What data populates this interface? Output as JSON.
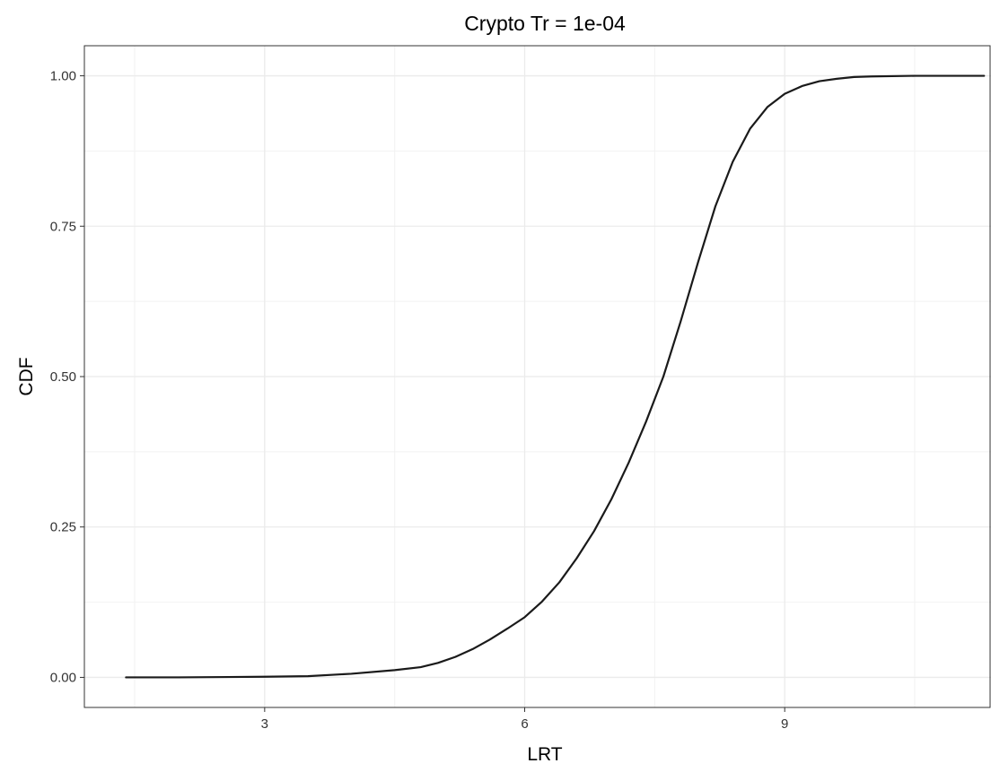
{
  "chart_data": {
    "type": "line",
    "title": "Crypto Tr = 1e-04",
    "xlabel": "LRT",
    "ylabel": "CDF",
    "xlim": [
      0.92,
      11.38
    ],
    "ylim": [
      -0.05,
      1.05
    ],
    "xticks": [
      3,
      6,
      9
    ],
    "xtick_labels": [
      "3",
      "6",
      "9"
    ],
    "yticks": [
      0,
      0.25,
      0.5,
      0.75,
      1
    ],
    "ytick_labels": [
      "0.00",
      "0.25",
      "0.50",
      "0.75",
      "1.00"
    ],
    "grid": true,
    "legend": "none",
    "series": [
      {
        "color": "#1a1a1a",
        "x": [
          1.4,
          2.0,
          3.0,
          3.5,
          4.0,
          4.5,
          4.8,
          5.0,
          5.2,
          5.4,
          5.6,
          5.8,
          6.0,
          6.2,
          6.4,
          6.6,
          6.8,
          7.0,
          7.2,
          7.4,
          7.6,
          7.8,
          8.0,
          8.2,
          8.4,
          8.6,
          8.8,
          9.0,
          9.2,
          9.4,
          9.6,
          9.8,
          10.0,
          10.5,
          11.0,
          11.3
        ],
        "y": [
          0.0,
          0.0,
          0.001,
          0.002,
          0.006,
          0.012,
          0.017,
          0.024,
          0.034,
          0.047,
          0.063,
          0.081,
          0.1,
          0.126,
          0.158,
          0.198,
          0.243,
          0.296,
          0.357,
          0.425,
          0.5,
          0.592,
          0.69,
          0.783,
          0.857,
          0.912,
          0.948,
          0.97,
          0.983,
          0.991,
          0.995,
          0.998,
          0.999,
          1.0,
          1.0,
          1.0
        ]
      }
    ]
  }
}
